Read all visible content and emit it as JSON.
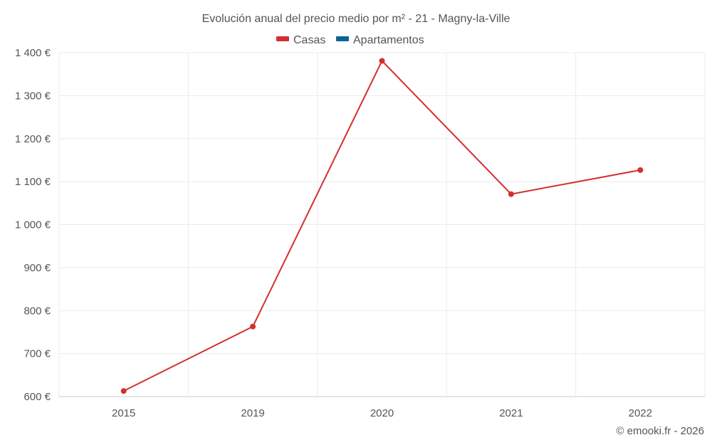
{
  "chart_data": {
    "type": "line",
    "title": "Evolución anual del precio medio por m² - 21 - Magny-la-Ville",
    "categories": [
      "2015",
      "2019",
      "2020",
      "2021",
      "2022"
    ],
    "series": [
      {
        "name": "Casas",
        "color": "#d32f2f",
        "values": [
          613,
          763,
          1381,
          1071,
          1127
        ]
      },
      {
        "name": "Apartamentos",
        "color": "#0a6596",
        "values": [
          null,
          null,
          null,
          null,
          null
        ]
      }
    ],
    "ylim": [
      600,
      1400
    ],
    "yticks": [
      600,
      700,
      800,
      900,
      1000,
      1100,
      1200,
      1300,
      1400
    ],
    "ytick_labels": [
      "600 €",
      "700 €",
      "800 €",
      "900 €",
      "1 000 €",
      "1 100 €",
      "1 200 €",
      "1 300 €",
      "1 400 €"
    ],
    "legend_position": "top-center",
    "grid": true
  },
  "credit": "© emooki.fr - 2026"
}
